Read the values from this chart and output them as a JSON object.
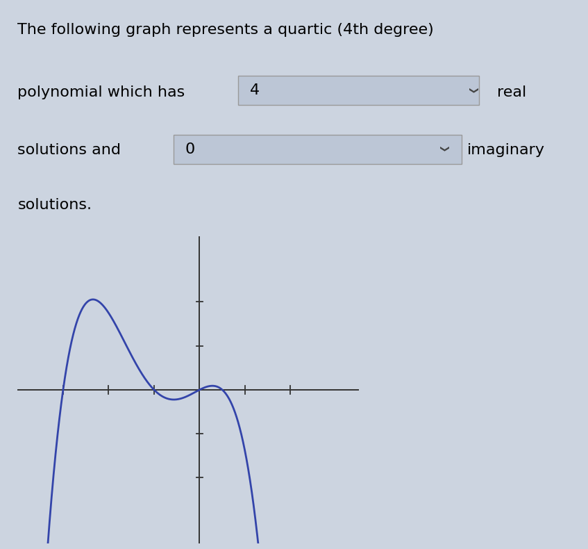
{
  "background_color": "#ccd4e0",
  "curve_color": "#3344aa",
  "curve_linewidth": 2.0,
  "title_line1": "The following graph represents a quartic (4th degree)",
  "title_line2": "polynomial which has",
  "title_line3": "solutions and",
  "title_line4": "solutions.",
  "box1_value": "4",
  "box2_value": "0",
  "real_text": "real",
  "imaginary_text": "imaginary",
  "font_size_title": 16,
  "roots": [
    -3.0,
    -1.0,
    0.0,
    0.5
  ],
  "scale_factor": -1.0,
  "xlim": [
    -4.0,
    3.5
  ],
  "ylim": [
    -3.5,
    3.5
  ],
  "x_ticks": [
    -3,
    -2,
    -1,
    1,
    2
  ],
  "y_ticks": [
    -2,
    -1,
    1,
    2
  ],
  "curve_xlim_start": -3.5,
  "curve_xlim_end": 2.8,
  "y_scale": 0.35
}
